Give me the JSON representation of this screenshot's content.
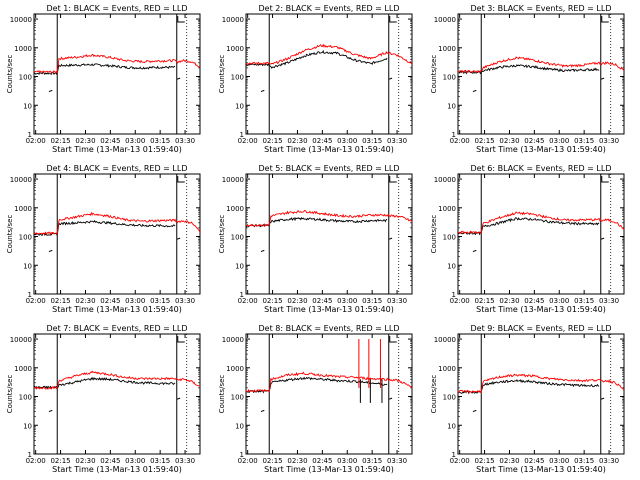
{
  "colors": {
    "events": "#000000",
    "lld": "#ff0000",
    "axes": "#000000",
    "background": "#ffffff"
  },
  "axes_common": {
    "xlabel": "Start Time (13-Mar-13 01:59:40)",
    "ylabel": "Counts/sec",
    "x_tick_labels": [
      "02:00",
      "02:15",
      "02:30",
      "02:45",
      "03:00",
      "03:15",
      "03:30"
    ],
    "y_tick_labels": [
      "1",
      "10",
      "100",
      "1000",
      "10000"
    ],
    "xlim_minutes_from_0200": [
      0,
      100
    ],
    "ylim": [
      1,
      15000
    ],
    "yscale": "log",
    "vertical_markers_minutes_from_0200": [
      14,
      86
    ],
    "dotted_marker_minutes_from_0200": [
      92
    ]
  },
  "chart_data": [
    {
      "type": "line",
      "panel": 1,
      "title": "Det 1: BLACK = Events, RED = LLD",
      "x_minutes_from_0200": [
        0,
        14,
        15,
        25,
        35,
        45,
        55,
        65,
        75,
        85,
        86,
        90,
        95,
        100
      ],
      "series": [
        {
          "name": "Events",
          "values": [
            130,
            130,
            240,
            250,
            260,
            240,
            210,
            200,
            210,
            210,
            null,
            null,
            null,
            null
          ]
        },
        {
          "name": "LLD",
          "values": [
            145,
            145,
            420,
            470,
            560,
            470,
            360,
            330,
            350,
            360,
            320,
            360,
            330,
            220
          ]
        }
      ]
    },
    {
      "type": "line",
      "panel": 2,
      "title": "Det 2: BLACK = Events, RED = LLD",
      "x_minutes_from_0200": [
        0,
        14,
        15,
        25,
        35,
        45,
        55,
        65,
        75,
        85,
        86,
        90,
        95,
        100
      ],
      "series": [
        {
          "name": "Events",
          "values": [
            260,
            260,
            210,
            300,
            520,
            720,
            650,
            380,
            280,
            430,
            null,
            null,
            null,
            null
          ]
        },
        {
          "name": "LLD",
          "values": [
            290,
            290,
            260,
            420,
            800,
            1200,
            1050,
            600,
            420,
            700,
            650,
            600,
            420,
            280
          ]
        }
      ]
    },
    {
      "type": "line",
      "panel": 3,
      "title": "Det 3: BLACK = Events, RED = LLD",
      "x_minutes_from_0200": [
        0,
        14,
        15,
        25,
        35,
        45,
        55,
        65,
        75,
        85,
        86,
        90,
        95,
        100
      ],
      "series": [
        {
          "name": "Events",
          "values": [
            140,
            140,
            160,
            210,
            240,
            220,
            180,
            160,
            170,
            180,
            null,
            null,
            null,
            null
          ]
        },
        {
          "name": "LLD",
          "values": [
            150,
            150,
            200,
            330,
            450,
            380,
            280,
            230,
            250,
            300,
            280,
            300,
            260,
            170
          ]
        }
      ]
    },
    {
      "type": "line",
      "panel": 4,
      "title": "Det 4: BLACK = Events, RED = LLD",
      "x_minutes_from_0200": [
        0,
        14,
        15,
        25,
        35,
        45,
        55,
        65,
        75,
        85,
        86,
        90,
        95,
        100
      ],
      "series": [
        {
          "name": "Events",
          "values": [
            120,
            120,
            280,
            300,
            330,
            300,
            260,
            240,
            240,
            230,
            null,
            null,
            null,
            null
          ]
        },
        {
          "name": "LLD",
          "values": [
            130,
            130,
            380,
            480,
            620,
            520,
            380,
            340,
            360,
            370,
            330,
            350,
            300,
            150
          ]
        }
      ]
    },
    {
      "type": "line",
      "panel": 5,
      "title": "Det 5: BLACK = Events, RED = LLD",
      "x_minutes_from_0200": [
        0,
        14,
        15,
        25,
        35,
        45,
        55,
        65,
        75,
        85,
        86,
        90,
        95,
        100
      ],
      "series": [
        {
          "name": "Events",
          "values": [
            240,
            240,
            330,
            400,
            420,
            390,
            350,
            330,
            360,
            360,
            null,
            null,
            null,
            null
          ]
        },
        {
          "name": "LLD",
          "values": [
            250,
            250,
            520,
            680,
            760,
            640,
            540,
            500,
            560,
            560,
            520,
            520,
            450,
            330
          ]
        }
      ]
    },
    {
      "type": "line",
      "panel": 6,
      "title": "Det 6: BLACK = Events, RED = LLD",
      "x_minutes_from_0200": [
        0,
        14,
        15,
        25,
        35,
        45,
        55,
        65,
        75,
        85,
        86,
        90,
        95,
        100
      ],
      "series": [
        {
          "name": "Events",
          "values": [
            130,
            130,
            220,
            300,
            420,
            400,
            330,
            290,
            280,
            270,
            null,
            null,
            null,
            null
          ]
        },
        {
          "name": "LLD",
          "values": [
            140,
            140,
            280,
            450,
            660,
            600,
            450,
            370,
            380,
            390,
            360,
            380,
            320,
            180
          ]
        }
      ]
    },
    {
      "type": "line",
      "panel": 7,
      "title": "Det 7: BLACK = Events, RED = LLD",
      "x_minutes_from_0200": [
        0,
        14,
        15,
        25,
        35,
        45,
        55,
        65,
        75,
        85,
        86,
        90,
        95,
        100
      ],
      "series": [
        {
          "name": "Events",
          "values": [
            210,
            210,
            250,
            320,
            420,
            400,
            340,
            300,
            290,
            280,
            null,
            null,
            null,
            null
          ]
        },
        {
          "name": "LLD",
          "values": [
            200,
            200,
            350,
            520,
            700,
            600,
            460,
            420,
            420,
            420,
            380,
            400,
            330,
            220
          ]
        }
      ]
    },
    {
      "type": "line",
      "panel": 8,
      "title": "Det 8: BLACK = Events, RED = LLD",
      "x_minutes_from_0200": [
        0,
        14,
        15,
        25,
        35,
        45,
        55,
        65,
        75,
        85,
        86,
        90,
        95,
        100
      ],
      "series": [
        {
          "name": "Events",
          "values": [
            150,
            150,
            300,
            380,
            440,
            400,
            360,
            340,
            300,
            260,
            null,
            null,
            null,
            null
          ]
        },
        {
          "name": "LLD",
          "values": [
            160,
            160,
            400,
            560,
            640,
            560,
            490,
            470,
            420,
            400,
            380,
            380,
            300,
            200
          ]
        }
      ],
      "spikes": [
        {
          "x_minute": 68,
          "value": 10000
        },
        {
          "x_minute": 74,
          "value": 10000
        },
        {
          "x_minute": 81,
          "value": 10000
        }
      ]
    },
    {
      "type": "line",
      "panel": 9,
      "title": "Det 9: BLACK = Events, RED = LLD",
      "x_minutes_from_0200": [
        0,
        14,
        15,
        25,
        35,
        45,
        55,
        65,
        75,
        85,
        86,
        90,
        95,
        100
      ],
      "series": [
        {
          "name": "Events",
          "values": [
            140,
            140,
            260,
            320,
            360,
            330,
            280,
            260,
            240,
            240,
            null,
            null,
            null,
            null
          ]
        },
        {
          "name": "LLD",
          "values": [
            150,
            150,
            330,
            480,
            560,
            520,
            420,
            380,
            360,
            380,
            340,
            360,
            300,
            170
          ]
        }
      ]
    }
  ]
}
